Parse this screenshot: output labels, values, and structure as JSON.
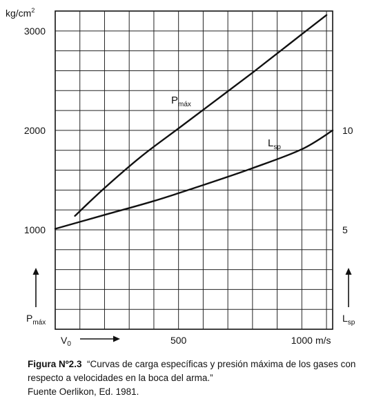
{
  "chart_data": {
    "type": "line",
    "y_left_unit": "kg/cm",
    "y_left_unit_exp": "2",
    "y_left_ticks": [
      1000,
      2000,
      3000
    ],
    "y_right_ticks": [
      5,
      10
    ],
    "x_ticks": [
      500,
      1000
    ],
    "x_unit": "m/s",
    "x_start_label": "V",
    "x_start_label_sub": "0",
    "y_left_label": "P",
    "y_left_label_sub": "máx",
    "y_right_label": "L",
    "y_right_label_sub": "sp",
    "xlim": [
      0,
      1125
    ],
    "ylim_left": [
      0,
      3200
    ],
    "ylim_right": [
      0,
      16
    ],
    "grid": true,
    "series": [
      {
        "name": "P",
        "name_sub": "máx",
        "axis": "left",
        "x": [
          80,
          200,
          350,
          500,
          650,
          800,
          950,
          1100
        ],
        "y": [
          1140,
          1420,
          1740,
          2020,
          2300,
          2580,
          2870,
          3160
        ]
      },
      {
        "name": "L",
        "name_sub": "sp",
        "axis": "right",
        "x": [
          0,
          200,
          400,
          600,
          800,
          1000,
          1125
        ],
        "y": [
          5.05,
          5.75,
          6.45,
          7.25,
          8.1,
          9.05,
          10.0
        ]
      }
    ]
  },
  "caption": {
    "lead": "Figura Nº2.3",
    "text": "“Curvas de carga específicas y presión máxima de los gases con respecto a velocidades en la boca del arma.”",
    "source": "Fuente Oerlikon, Ed. 1981."
  }
}
